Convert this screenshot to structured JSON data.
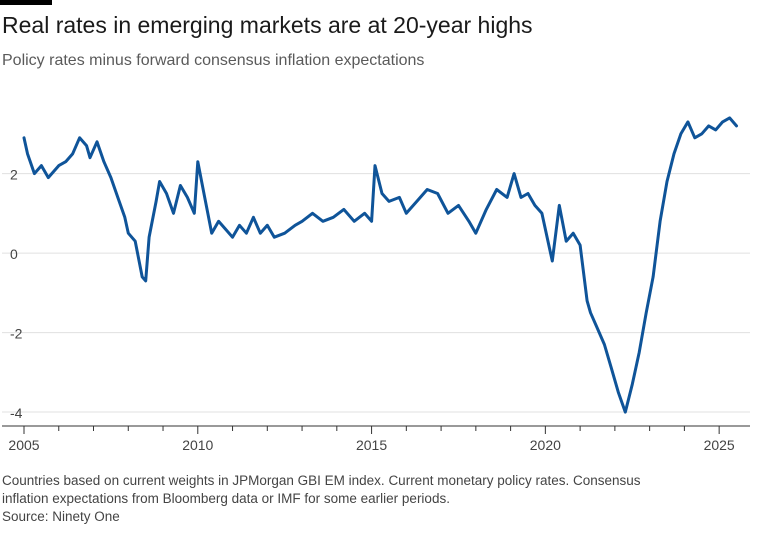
{
  "title": "Real rates in emerging markets are at 20-year highs",
  "subtitle": "Policy rates minus forward consensus inflation expectations",
  "footer": {
    "note_line1": "Countries based on current weights in JPMorgan GBI EM index. Current monetary policy rates. Consensus",
    "note_line2": "inflation expectations from Bloomberg data or IMF for some earlier periods.",
    "source": "Source: Ninety One"
  },
  "colors": {
    "line": "#0f5499",
    "grid": "#e0e0e0",
    "axis": "#333333"
  },
  "chart_data": {
    "type": "line",
    "title": "Real rates in emerging markets are at 20-year highs",
    "subtitle": "Policy rates minus forward consensus inflation expectations",
    "xlabel": "",
    "ylabel": "",
    "xlim": [
      2005,
      2025.6
    ],
    "ylim": [
      -4.2,
      3.6
    ],
    "yticks": [
      -4,
      -2,
      0,
      2
    ],
    "xticks": [
      2005,
      2010,
      2015,
      2020,
      2025
    ],
    "grid": true,
    "series": [
      {
        "name": "",
        "x": [
          2005.0,
          2005.1,
          2005.3,
          2005.5,
          2005.7,
          2005.9,
          2006.0,
          2006.2,
          2006.4,
          2006.6,
          2006.8,
          2006.9,
          2007.1,
          2007.3,
          2007.5,
          2007.7,
          2007.9,
          2008.0,
          2008.2,
          2008.4,
          2008.5,
          2008.6,
          2008.8,
          2008.9,
          2009.1,
          2009.3,
          2009.5,
          2009.7,
          2009.9,
          2010.0,
          2010.2,
          2010.4,
          2010.6,
          2010.8,
          2011.0,
          2011.2,
          2011.4,
          2011.6,
          2011.8,
          2012.0,
          2012.2,
          2012.5,
          2012.8,
          2013.0,
          2013.3,
          2013.6,
          2013.9,
          2014.2,
          2014.5,
          2014.8,
          2015.0,
          2015.1,
          2015.3,
          2015.5,
          2015.8,
          2016.0,
          2016.3,
          2016.6,
          2016.9,
          2017.2,
          2017.5,
          2017.8,
          2018.0,
          2018.3,
          2018.6,
          2018.9,
          2019.1,
          2019.3,
          2019.5,
          2019.7,
          2019.9,
          2020.1,
          2020.2,
          2020.4,
          2020.6,
          2020.8,
          2021.0,
          2021.2,
          2021.3,
          2021.5,
          2021.7,
          2021.9,
          2022.1,
          2022.3,
          2022.5,
          2022.7,
          2022.9,
          2023.1,
          2023.3,
          2023.5,
          2023.7,
          2023.9,
          2024.1,
          2024.3,
          2024.5,
          2024.7,
          2024.9,
          2025.1,
          2025.3,
          2025.5
        ],
        "values": [
          2.9,
          2.5,
          2.0,
          2.2,
          1.9,
          2.1,
          2.2,
          2.3,
          2.5,
          2.9,
          2.7,
          2.4,
          2.8,
          2.3,
          1.9,
          1.4,
          0.9,
          0.5,
          0.3,
          -0.6,
          -0.7,
          0.4,
          1.3,
          1.8,
          1.5,
          1.0,
          1.7,
          1.4,
          1.0,
          2.3,
          1.4,
          0.5,
          0.8,
          0.6,
          0.4,
          0.7,
          0.5,
          0.9,
          0.5,
          0.7,
          0.4,
          0.5,
          0.7,
          0.8,
          1.0,
          0.8,
          0.9,
          1.1,
          0.8,
          1.0,
          0.8,
          2.2,
          1.5,
          1.3,
          1.4,
          1.0,
          1.3,
          1.6,
          1.5,
          1.0,
          1.2,
          0.8,
          0.5,
          1.1,
          1.6,
          1.4,
          2.0,
          1.4,
          1.5,
          1.2,
          1.0,
          0.2,
          -0.2,
          1.2,
          0.3,
          0.5,
          0.2,
          -1.2,
          -1.5,
          -1.9,
          -2.3,
          -2.9,
          -3.5,
          -4.0,
          -3.3,
          -2.5,
          -1.5,
          -0.6,
          0.8,
          1.8,
          2.5,
          3.0,
          3.3,
          2.9,
          3.0,
          3.2,
          3.1,
          3.3,
          3.4,
          3.2
        ]
      }
    ],
    "line_width": 3,
    "color": "#0f5499"
  }
}
